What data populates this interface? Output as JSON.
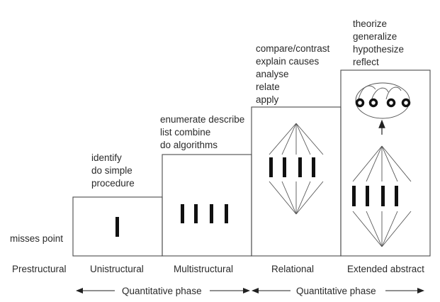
{
  "levels": [
    {
      "name": "Prestructural",
      "verbs": [
        "misses point"
      ]
    },
    {
      "name": "Unistructural",
      "verbs": [
        "identify",
        "do simple",
        "procedure"
      ]
    },
    {
      "name": "Multistructural",
      "verbs": [
        "enumerate describe",
        "list combine",
        "do algorithms"
      ]
    },
    {
      "name": "Relational",
      "verbs": [
        "compare/contrast",
        "explain causes",
        "analyse",
        "relate",
        "apply"
      ]
    },
    {
      "name": "Extended abstract",
      "verbs": [
        "theorize",
        "generalize",
        "hypothesize",
        "reflect"
      ]
    }
  ],
  "phases": [
    {
      "label": "Quantitative phase"
    },
    {
      "label": "Quantitative phase"
    }
  ]
}
